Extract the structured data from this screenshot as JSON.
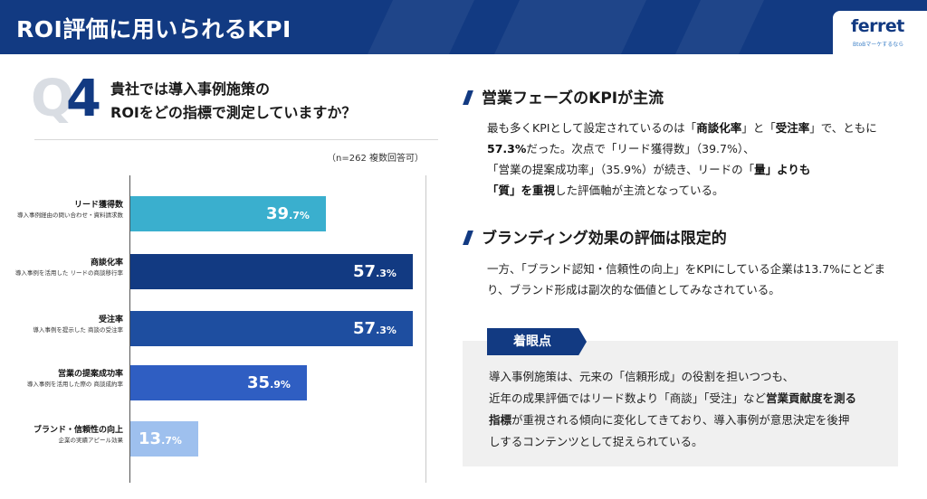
{
  "header": {
    "title": "ROI評価に用いられるKPI"
  },
  "logo": {
    "name": "ferret",
    "tagline": "BtoBマーケするなら"
  },
  "question": {
    "prefix": "Q",
    "number": "4",
    "line1": "貴社では導入事例施策の",
    "line2": "ROIをどの指標で測定していますか？"
  },
  "sample_note": "（n=262 複数回答可）",
  "chart_data": {
    "type": "bar",
    "orientation": "horizontal",
    "unit": "%",
    "xlim": [
      0,
      75
    ],
    "categories": [
      "リード獲得数",
      "商談化率",
      "受注率",
      "営業の提案成功率",
      "ブランド・信頼性の向上"
    ],
    "descriptions": [
      "導入事例経由の問い合わせ・資料請求数",
      "導入事例を活用した リードの商談移行率",
      "導入事例を提示した 商談の受注率",
      "導入事例を活用した際の 商談成約率",
      "企業の実績アピール効果"
    ],
    "values": [
      39.7,
      57.3,
      57.3,
      35.9,
      13.7
    ],
    "labels_int": [
      "39",
      "57",
      "57",
      "35",
      "13"
    ],
    "labels_dec": [
      ".7%",
      ".3%",
      ".3%",
      ".9%",
      ".7%"
    ],
    "colors": [
      "#3aafce",
      "#123a82",
      "#1e4ea0",
      "#2f5ec2",
      "#9ec0ee"
    ]
  },
  "section1": {
    "title": "営業フェーズのKPIが主流",
    "l1a": "最も多くKPIとして設定されているのは「",
    "l1b": "商談化率",
    "l1c": "」と「",
    "l1d": "受注率",
    "l1e": "」で、ともに",
    "l2a": "57.3%",
    "l2b": "だった。次点で「リード獲得数」（39.7%）、",
    "l3a": "「営業の提案成功率」（35.9%）が続き、リードの「",
    "l3b": "量",
    "l3c": "」よりも",
    "l4a": "「",
    "l4b": "質",
    "l4c": "」を重視",
    "l4d": "した評価軸が主流となっている。"
  },
  "section2": {
    "title": "ブランディング効果の評価は限定的",
    "l1": "一方、「ブランド認知・信頼性の向上」をKPIにしている企業は13.7%にとどま",
    "l2": "り、ブランド形成は副次的な価値としてみなされている。"
  },
  "focus": {
    "label": "着眼点",
    "l1": "導入事例施策は、元来の「信頼形成」の役割を担いつつも、",
    "l2a": "近年の成果評価ではリード数より「商談」「受注」など",
    "l2b": "営業貢献度を測る",
    "l3a": "指標",
    "l3b": "が重視される傾向に変化してきており、導入事例が意思決定を後押",
    "l4": "しするコンテンツとして捉えられている。"
  }
}
